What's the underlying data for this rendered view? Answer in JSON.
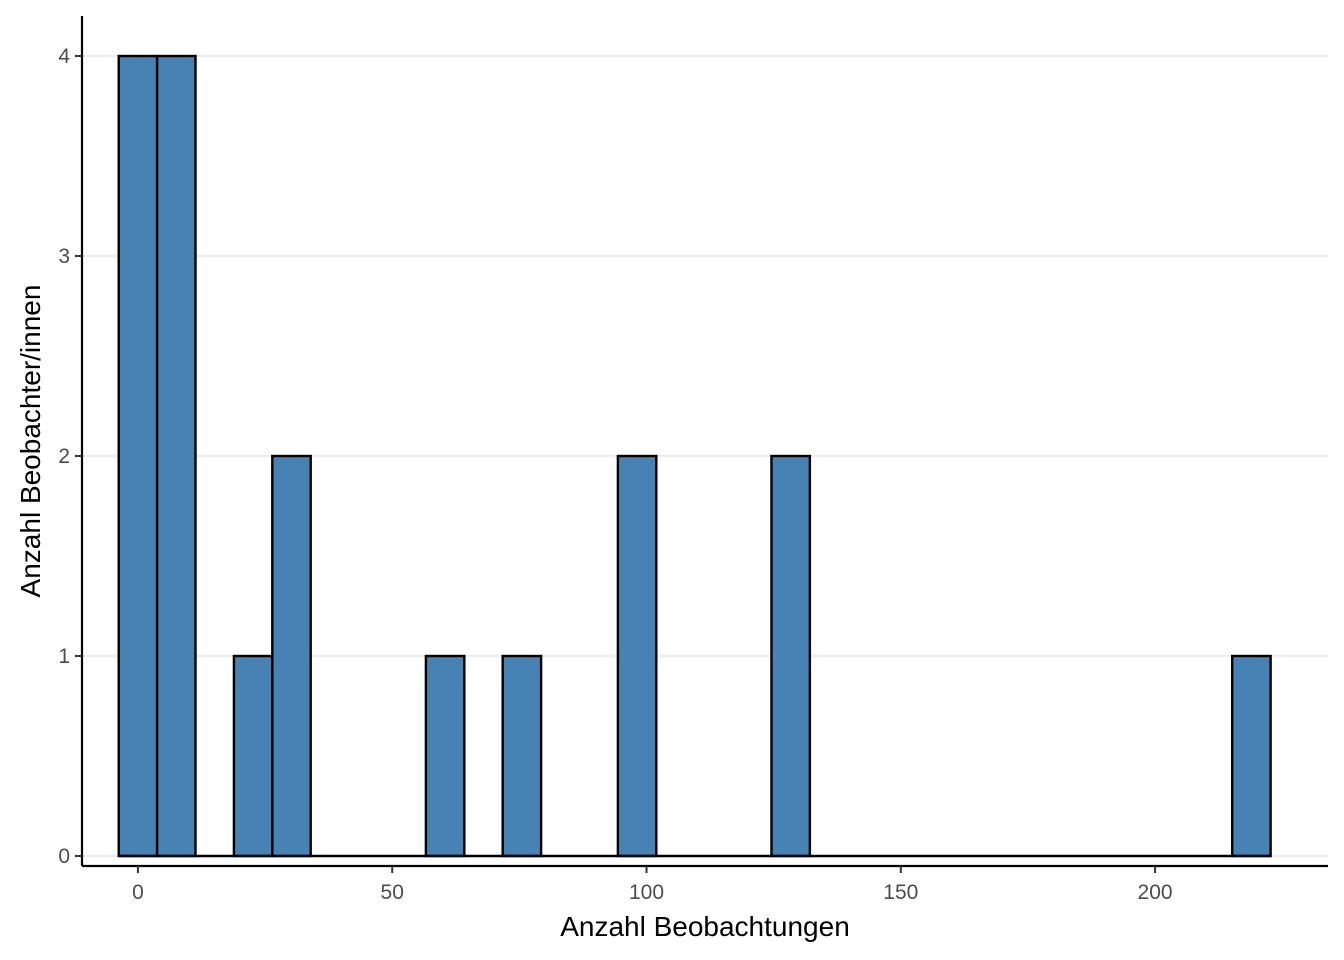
{
  "chart_data": {
    "type": "bar",
    "subtype": "histogram",
    "xlabel": "Anzahl Beobachtungen",
    "ylabel": "Anzahl Beobachter/innen",
    "xlim": [
      -11,
      234
    ],
    "ylim": [
      -0.05,
      4.2
    ],
    "x_ticks": [
      0,
      50,
      100,
      150,
      200
    ],
    "y_ticks": [
      0,
      1,
      2,
      3,
      4
    ],
    "bin_width": 7.55,
    "bin_start": -3.78,
    "counts": [
      4,
      4,
      0,
      1,
      2,
      0,
      0,
      0,
      1,
      0,
      1,
      0,
      0,
      2,
      0,
      0,
      0,
      2,
      0,
      0,
      0,
      0,
      0,
      0,
      0,
      0,
      0,
      0,
      0,
      1
    ],
    "bar_color": "#4682B4",
    "grid": "horizontal"
  }
}
